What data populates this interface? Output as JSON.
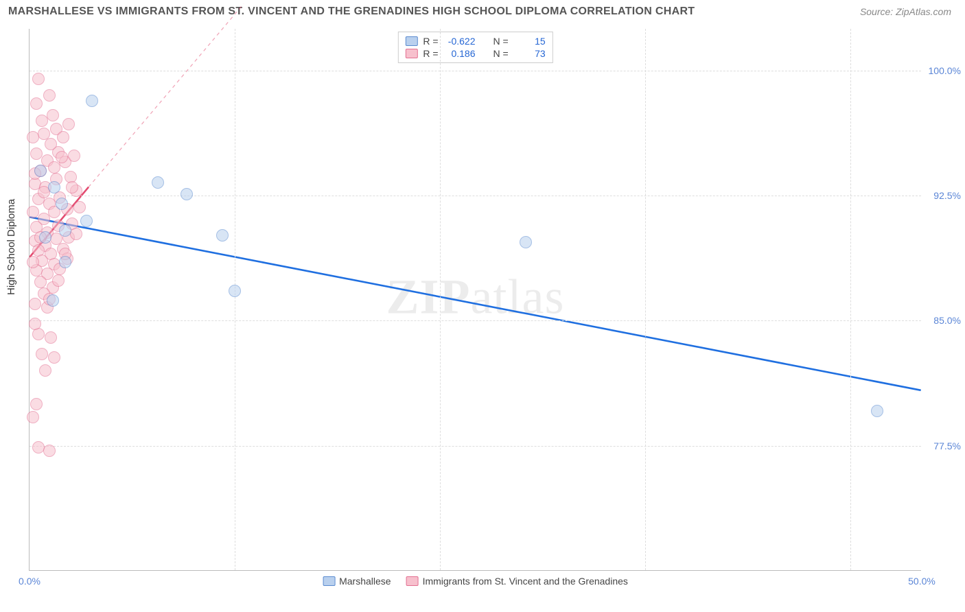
{
  "header": {
    "title": "MARSHALLESE VS IMMIGRANTS FROM ST. VINCENT AND THE GRENADINES HIGH SCHOOL DIPLOMA CORRELATION CHART",
    "source": "Source: ZipAtlas.com"
  },
  "chart": {
    "type": "scatter",
    "y_axis_label": "High School Diploma",
    "watermark": "ZIPatlas",
    "background_color": "#ffffff",
    "grid_color": "#dddddd",
    "axis_color": "#bbbbbb",
    "tick_label_color": "#5a85d6",
    "xlim": [
      0,
      50
    ],
    "ylim": [
      70,
      102.5
    ],
    "y_ticks": [
      77.5,
      85.0,
      92.5,
      100.0
    ],
    "y_tick_labels": [
      "77.5%",
      "85.0%",
      "92.5%",
      "100.0%"
    ],
    "x_ticks": [
      0,
      50
    ],
    "x_tick_labels": [
      "0.0%",
      "50.0%"
    ],
    "x_grid_positions_pct": [
      0,
      23,
      46,
      69,
      92
    ],
    "point_radius": 9,
    "point_border_width": 1.2,
    "series": [
      {
        "name": "Marshallese",
        "fill": "#b9d0ee",
        "stroke": "#5b8bd0",
        "fill_opacity": 0.55,
        "r_value": "-0.622",
        "n_value": "15",
        "regression": {
          "x1": 0,
          "y1": 91.2,
          "x2": 50,
          "y2": 80.8,
          "color": "#1f6fe0",
          "width": 2.6,
          "dash": "none",
          "extend_dash": false
        },
        "points": [
          {
            "x": 3.5,
            "y": 98.2
          },
          {
            "x": 7.2,
            "y": 93.3
          },
          {
            "x": 8.8,
            "y": 92.6
          },
          {
            "x": 10.8,
            "y": 90.1
          },
          {
            "x": 3.2,
            "y": 91.0
          },
          {
            "x": 1.3,
            "y": 86.2
          },
          {
            "x": 11.5,
            "y": 86.8
          },
          {
            "x": 27.8,
            "y": 89.7
          },
          {
            "x": 47.5,
            "y": 79.6
          },
          {
            "x": 1.8,
            "y": 92.0
          },
          {
            "x": 0.9,
            "y": 90.0
          },
          {
            "x": 2.0,
            "y": 90.4
          },
          {
            "x": 1.4,
            "y": 93.0
          },
          {
            "x": 2.0,
            "y": 88.5
          },
          {
            "x": 0.6,
            "y": 94.0
          }
        ]
      },
      {
        "name": "Immigrants from St. Vincent and the Grenadines",
        "fill": "#f7c0cd",
        "stroke": "#e36f91",
        "fill_opacity": 0.55,
        "r_value": "0.186",
        "n_value": "73",
        "regression": {
          "x1": 0,
          "y1": 88.8,
          "x2": 3.3,
          "y2": 93.0,
          "color": "#e34a6f",
          "width": 2.6,
          "dash": "none",
          "extend_x2": 12,
          "extend_y2": 104,
          "extend_dash": true
        },
        "points": [
          {
            "x": 0.5,
            "y": 99.5
          },
          {
            "x": 1.1,
            "y": 98.5
          },
          {
            "x": 0.7,
            "y": 97.0
          },
          {
            "x": 1.3,
            "y": 97.3
          },
          {
            "x": 0.8,
            "y": 96.2
          },
          {
            "x": 1.5,
            "y": 96.5
          },
          {
            "x": 2.2,
            "y": 96.8
          },
          {
            "x": 0.4,
            "y": 95.0
          },
          {
            "x": 1.0,
            "y": 94.6
          },
          {
            "x": 1.6,
            "y": 95.1
          },
          {
            "x": 0.6,
            "y": 94.0
          },
          {
            "x": 1.4,
            "y": 94.2
          },
          {
            "x": 2.0,
            "y": 94.5
          },
          {
            "x": 0.3,
            "y": 93.2
          },
          {
            "x": 0.9,
            "y": 93.0
          },
          {
            "x": 1.5,
            "y": 93.5
          },
          {
            "x": 2.3,
            "y": 93.6
          },
          {
            "x": 0.5,
            "y": 92.3
          },
          {
            "x": 1.1,
            "y": 92.0
          },
          {
            "x": 1.7,
            "y": 92.4
          },
          {
            "x": 0.2,
            "y": 91.5
          },
          {
            "x": 0.8,
            "y": 91.1
          },
          {
            "x": 1.4,
            "y": 91.5
          },
          {
            "x": 2.1,
            "y": 91.7
          },
          {
            "x": 2.8,
            "y": 91.8
          },
          {
            "x": 0.4,
            "y": 90.6
          },
          {
            "x": 1.0,
            "y": 90.3
          },
          {
            "x": 1.6,
            "y": 90.7
          },
          {
            "x": 2.4,
            "y": 90.8
          },
          {
            "x": 0.3,
            "y": 89.8
          },
          {
            "x": 0.9,
            "y": 89.5
          },
          {
            "x": 1.5,
            "y": 89.9
          },
          {
            "x": 2.2,
            "y": 90.0
          },
          {
            "x": 0.5,
            "y": 89.2
          },
          {
            "x": 1.2,
            "y": 89.0
          },
          {
            "x": 1.9,
            "y": 89.3
          },
          {
            "x": 0.7,
            "y": 88.6
          },
          {
            "x": 1.4,
            "y": 88.4
          },
          {
            "x": 2.1,
            "y": 88.7
          },
          {
            "x": 0.4,
            "y": 88.0
          },
          {
            "x": 1.0,
            "y": 87.8
          },
          {
            "x": 1.7,
            "y": 88.1
          },
          {
            "x": 0.6,
            "y": 87.3
          },
          {
            "x": 1.3,
            "y": 87.0
          },
          {
            "x": 0.8,
            "y": 86.6
          },
          {
            "x": 0.3,
            "y": 86.0
          },
          {
            "x": 1.0,
            "y": 85.8
          },
          {
            "x": 0.5,
            "y": 84.2
          },
          {
            "x": 1.2,
            "y": 84.0
          },
          {
            "x": 0.7,
            "y": 83.0
          },
          {
            "x": 1.4,
            "y": 82.8
          },
          {
            "x": 0.9,
            "y": 82.0
          },
          {
            "x": 0.4,
            "y": 80.0
          },
          {
            "x": 0.2,
            "y": 79.2
          },
          {
            "x": 0.5,
            "y": 77.4
          },
          {
            "x": 1.1,
            "y": 77.2
          },
          {
            "x": 0.3,
            "y": 93.8
          },
          {
            "x": 2.6,
            "y": 92.8
          },
          {
            "x": 1.8,
            "y": 94.8
          },
          {
            "x": 2.5,
            "y": 94.9
          },
          {
            "x": 0.2,
            "y": 96.0
          },
          {
            "x": 1.9,
            "y": 96.0
          },
          {
            "x": 0.6,
            "y": 90.0
          },
          {
            "x": 2.0,
            "y": 89.0
          },
          {
            "x": 0.2,
            "y": 88.5
          },
          {
            "x": 2.6,
            "y": 90.2
          },
          {
            "x": 1.1,
            "y": 86.3
          },
          {
            "x": 0.3,
            "y": 84.8
          },
          {
            "x": 1.6,
            "y": 87.4
          },
          {
            "x": 0.8,
            "y": 92.7
          },
          {
            "x": 2.4,
            "y": 93.0
          },
          {
            "x": 1.2,
            "y": 95.6
          },
          {
            "x": 0.4,
            "y": 98.0
          }
        ]
      }
    ],
    "legend_top": {
      "r_label": "R =",
      "n_label": "N ="
    },
    "legend_bottom_labels": {
      "series1": "Marshallese",
      "series2": "Immigrants from St. Vincent and the Grenadines"
    }
  }
}
